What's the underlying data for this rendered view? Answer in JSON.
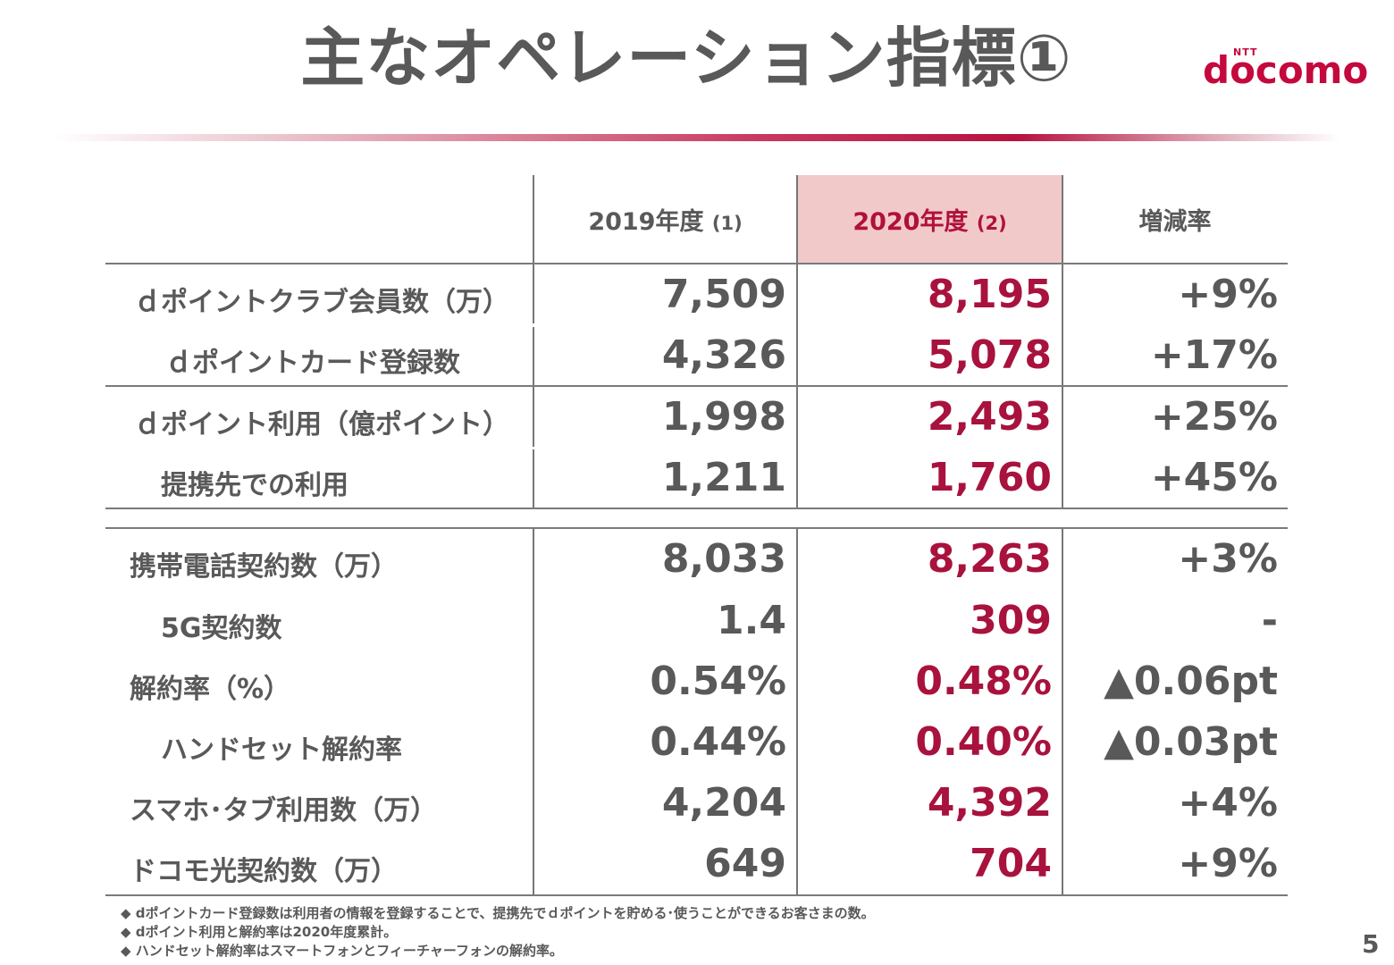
{
  "title": "主なオペレーション指標①",
  "logo": {
    "top": "NTT",
    "word": "docomo",
    "color": "#c4093d"
  },
  "table": {
    "headers": {
      "fy2019": "2019年度",
      "fy2019_note": "(1)",
      "fy2020": "2020年度",
      "fy2020_note": "(2)",
      "change": "増減率"
    },
    "rows": [
      {
        "label": "ｄポイントクラブ会員数（万）",
        "prev": "7,509",
        "curr": "8,195",
        "change": "+9%"
      },
      {
        "label": "ｄポイントカード登録数",
        "prev": "4,326",
        "curr": "5,078",
        "change": "+17%"
      },
      {
        "label": "ｄポイント利用（億ポイント）",
        "prev": "1,998",
        "curr": "2,493",
        "change": "+25%"
      },
      {
        "label": "提携先での利用",
        "prev": "1,211",
        "curr": "1,760",
        "change": "+45%"
      },
      {
        "label": "携帯電話契約数（万）",
        "prev": "8,033",
        "curr": "8,263",
        "change": "+3%"
      },
      {
        "label": "5G契約数",
        "prev": "1.4",
        "curr": "309",
        "change": "-"
      },
      {
        "label": "解約率（%）",
        "prev": "0.54%",
        "curr": "0.48%",
        "change": "▲0.06pt"
      },
      {
        "label": "ハンドセット解約率",
        "prev": "0.44%",
        "curr": "0.40%",
        "change": "▲0.03pt"
      },
      {
        "label": "スマホ･タブ利用数（万）",
        "prev": "4,204",
        "curr": "4,392",
        "change": "+4%"
      },
      {
        "label": "ドコモ光契約数（万）",
        "prev": "649",
        "curr": "704",
        "change": "+9%"
      }
    ]
  },
  "footnotes": [
    "◆ dポイントカード登録数は利用者の情報を登録することで、提携先でｄポイントを貯める･使うことができるお客さまの数。",
    "◆ dポイント利用と解約率は2020年度累計。",
    "◆ ハンドセット解約率はスマートフォンとフィーチャーフォンの解約率。"
  ],
  "page_number": "5",
  "colors": {
    "accent": "#a8123d",
    "text": "#595959",
    "highlight": "#f2c9c9"
  }
}
